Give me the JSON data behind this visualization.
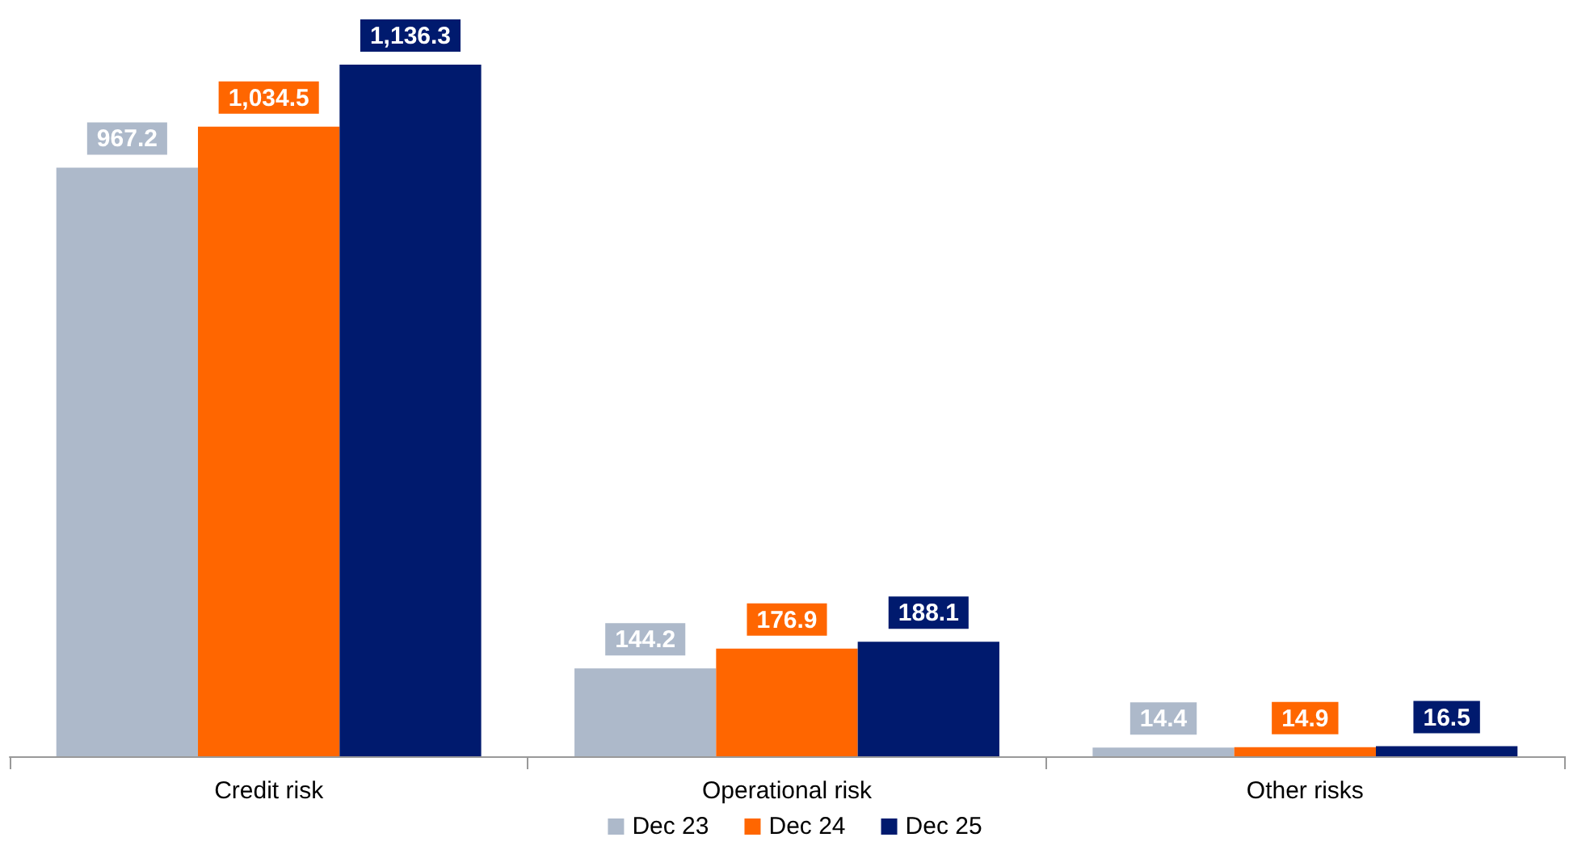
{
  "chart_data": {
    "type": "bar",
    "categories": [
      "Credit risk",
      "Operational risk",
      "Other risks"
    ],
    "series": [
      {
        "name": "Dec 23",
        "color": "#adb9ca",
        "values": [
          967.2,
          144.2,
          14.4
        ],
        "value_labels": [
          "967.2",
          "144.2",
          "14.4"
        ]
      },
      {
        "name": "Dec 24",
        "color": "#ff6600",
        "values": [
          1034.5,
          176.9,
          14.9
        ],
        "value_labels": [
          "1,034.5",
          "176.9",
          "14.9"
        ]
      },
      {
        "name": "Dec 25",
        "color": "#001a6e",
        "values": [
          1136.3,
          188.1,
          16.5
        ],
        "value_labels": [
          "1,136.3",
          "188.1",
          "16.5"
        ]
      }
    ],
    "legend": "bottom"
  }
}
